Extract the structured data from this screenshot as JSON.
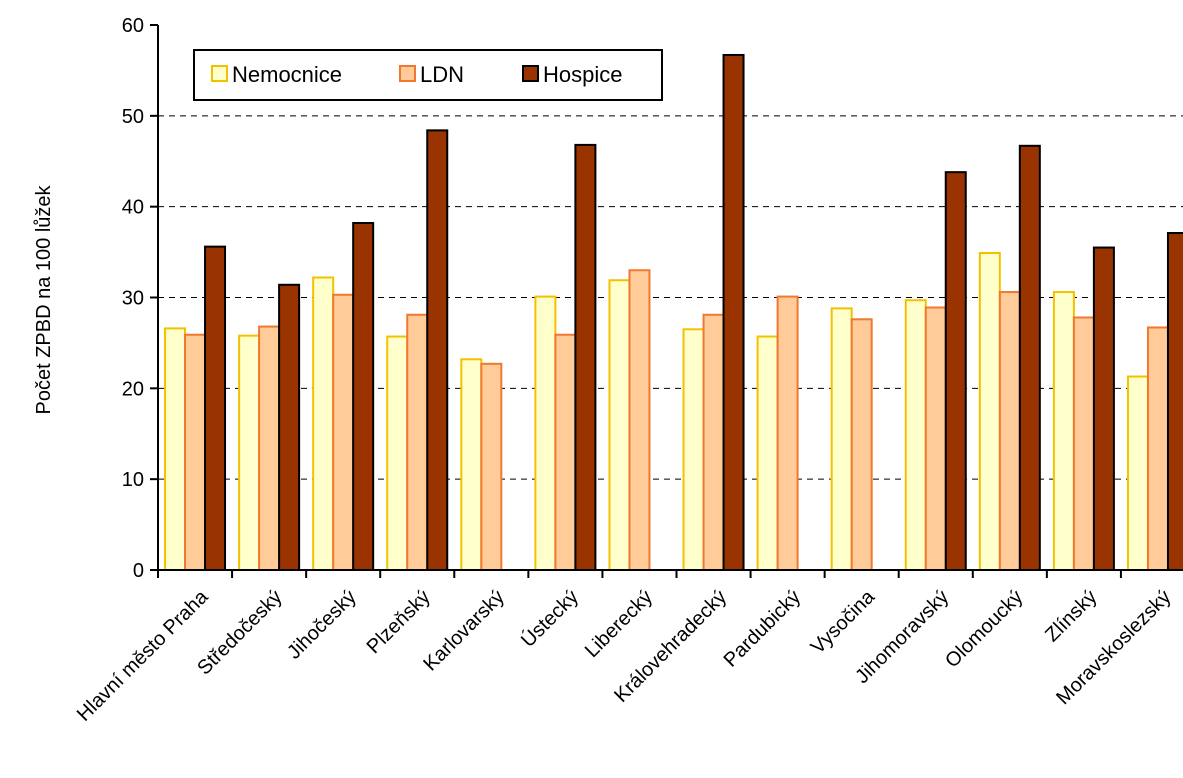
{
  "chart_data": {
    "type": "bar",
    "title": "",
    "xlabel": "",
    "ylabel": "Počet ZPBD na 100 lůžek",
    "ylim": [
      0,
      60
    ],
    "yticks": [
      0,
      10,
      20,
      30,
      40,
      50,
      60
    ],
    "grid": true,
    "legend_position": "top-left",
    "categories": [
      "Hlavní město Praha",
      "Středočeský",
      "Jihočeský",
      "Plzeňský",
      "Karlovarský",
      "Ústecký",
      "Liberecký",
      "Královehradecký",
      "Pardubický",
      "Vysočina",
      "Jihomoravský",
      "Olomoucký",
      "Zlínský",
      "Moravskoslezský"
    ],
    "series": [
      {
        "name": "Nemocnice",
        "color": "#FFFFCC",
        "stroke": "#F2C200",
        "values": [
          26.6,
          25.8,
          32.2,
          25.7,
          23.2,
          30.1,
          31.9,
          26.5,
          25.7,
          28.8,
          29.7,
          34.9,
          30.6,
          21.3
        ]
      },
      {
        "name": "LDN",
        "color": "#FFCC99",
        "stroke": "#F07830",
        "values": [
          25.9,
          26.8,
          30.3,
          28.1,
          22.7,
          25.9,
          33.0,
          28.1,
          30.1,
          27.6,
          28.9,
          30.6,
          27.8,
          26.7
        ]
      },
      {
        "name": "Hospice",
        "color": "#993300",
        "stroke": "#000000",
        "values": [
          35.6,
          31.4,
          38.2,
          48.4,
          null,
          46.8,
          null,
          56.7,
          null,
          null,
          43.8,
          46.7,
          35.5,
          37.1
        ]
      }
    ]
  }
}
